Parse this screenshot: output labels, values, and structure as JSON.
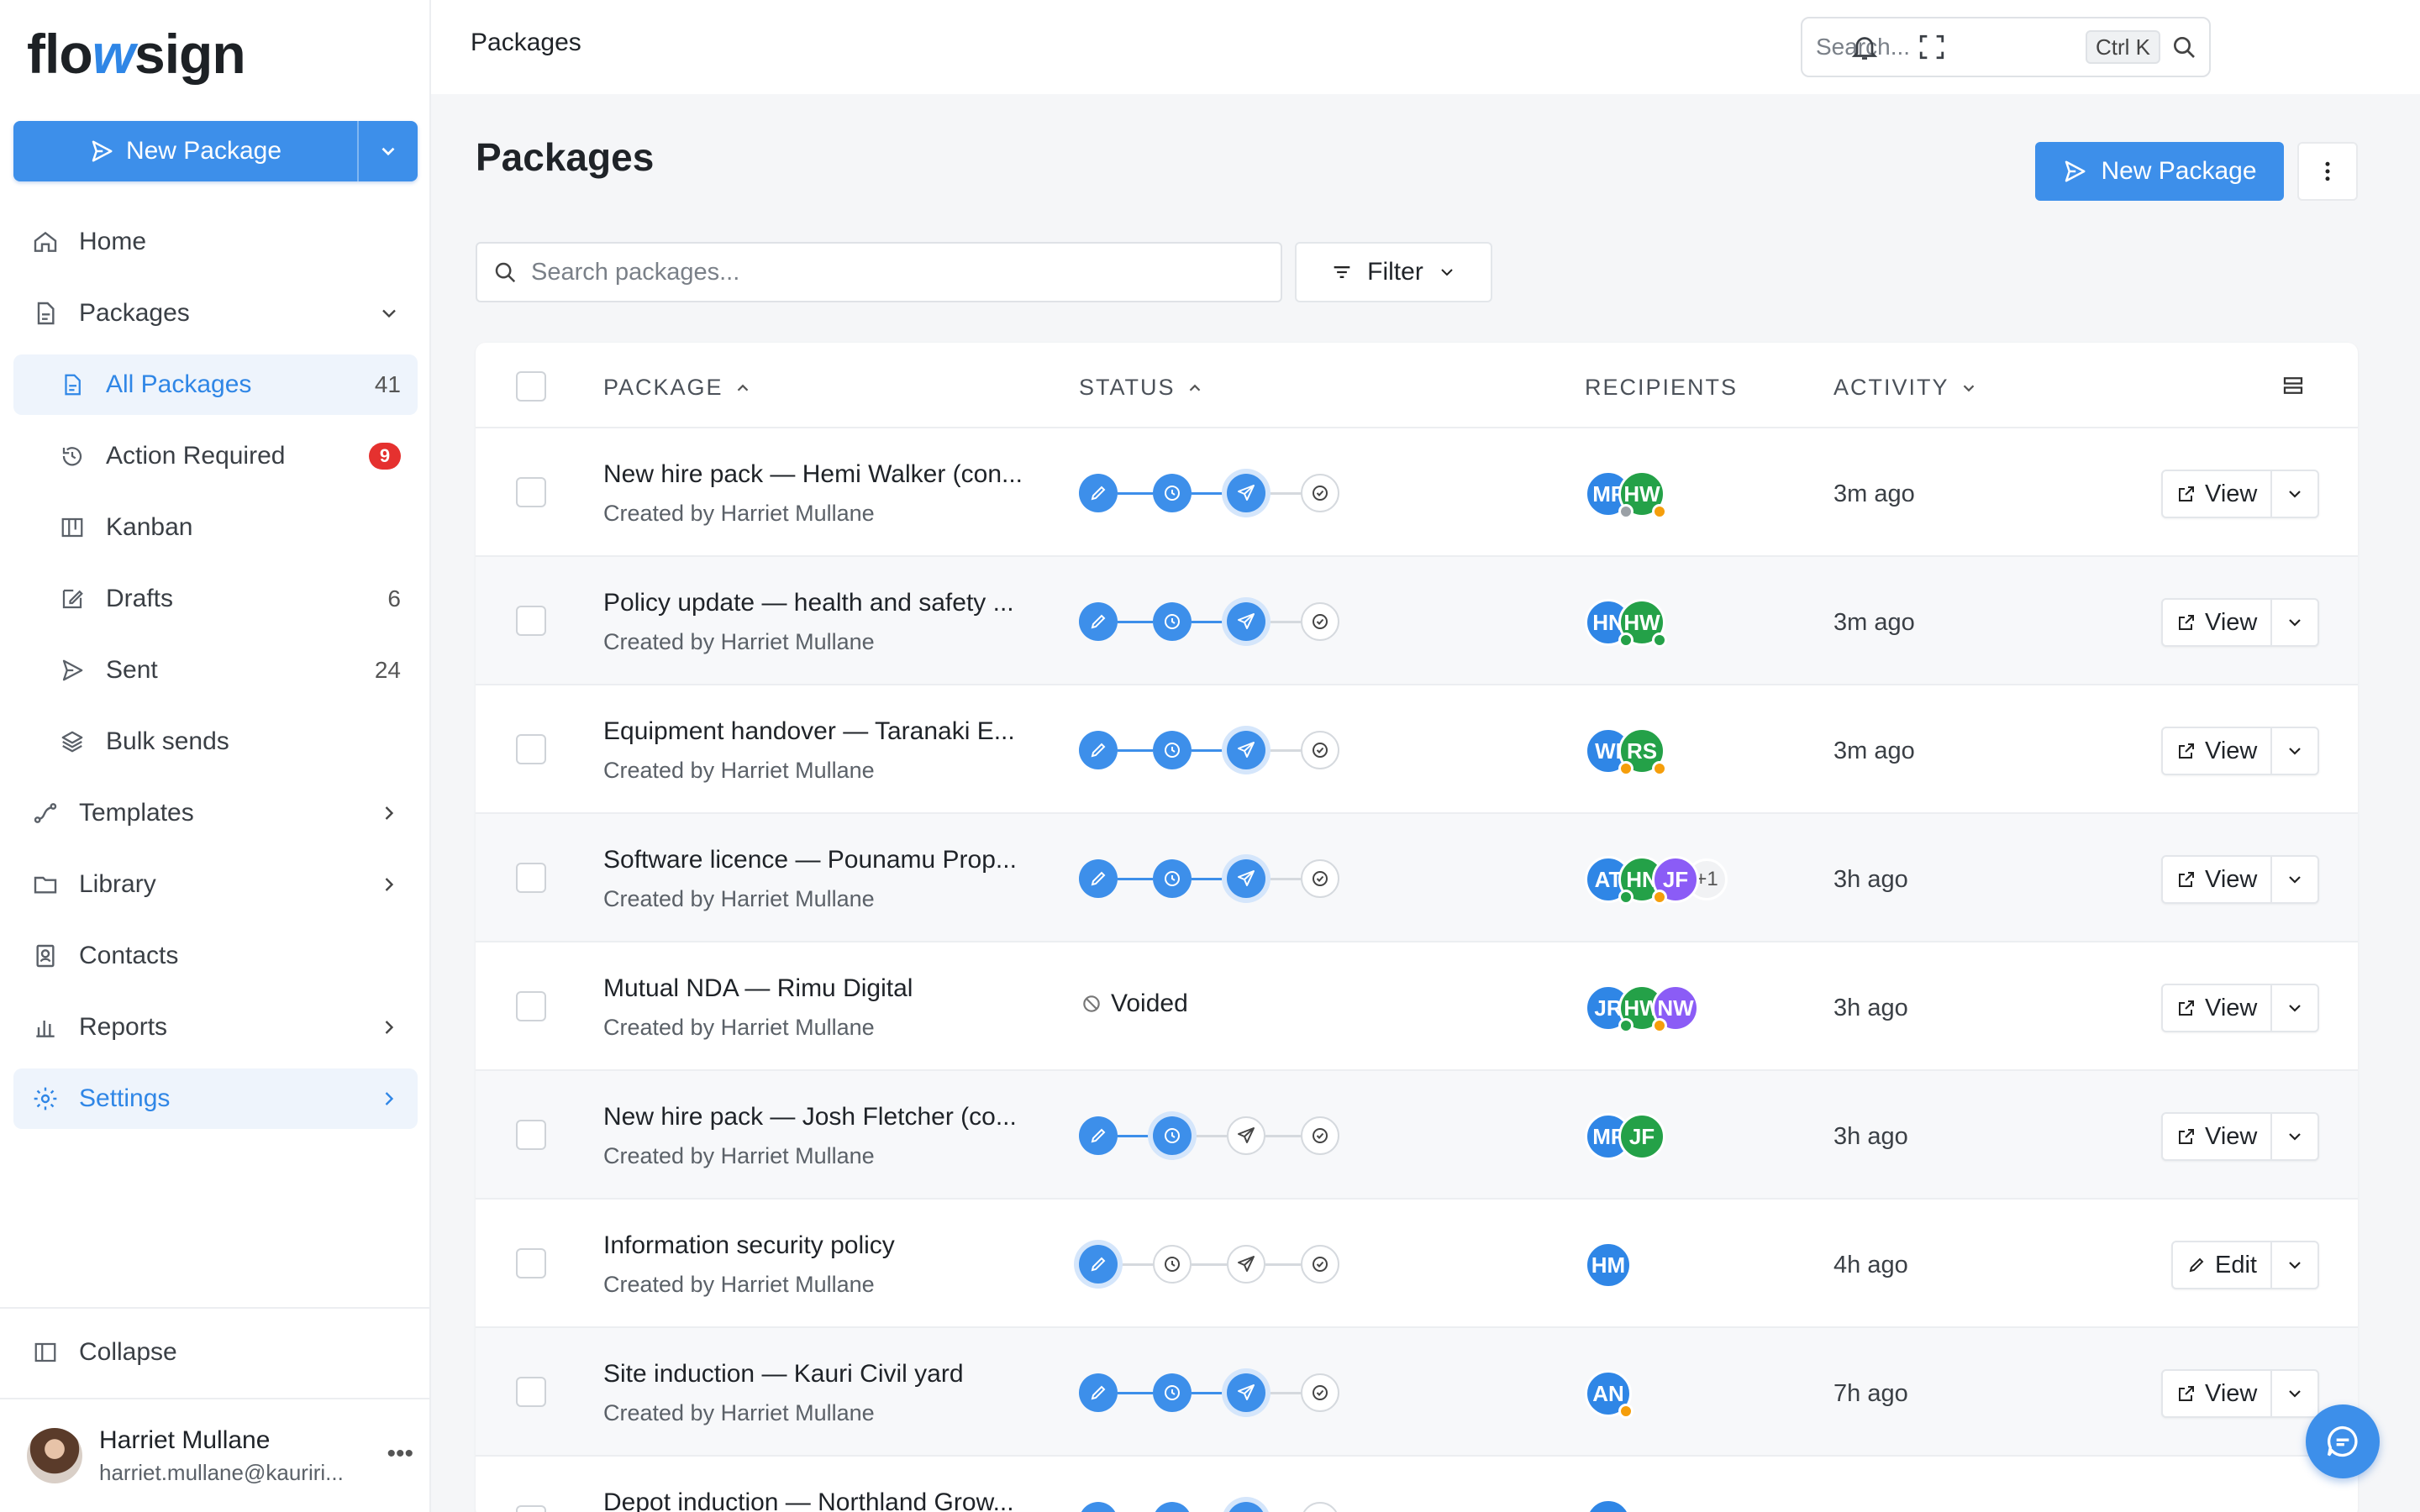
{
  "brand": {
    "logo_part1": "flo",
    "logo_part2": "w",
    "logo_part3": "sign",
    "accent": "#3d8fea"
  },
  "sidebar": {
    "new_package_label": "New Package",
    "items": [
      {
        "label": "Home",
        "icon": "home-icon"
      },
      {
        "label": "Packages",
        "icon": "document-icon"
      },
      {
        "label": "All Packages",
        "icon": "document-icon",
        "count": "41"
      },
      {
        "label": "Action Required",
        "icon": "history-icon",
        "badge": "9"
      },
      {
        "label": "Kanban",
        "icon": "kanban-icon"
      },
      {
        "label": "Drafts",
        "icon": "edit-icon",
        "count": "6"
      },
      {
        "label": "Sent",
        "icon": "send-icon",
        "count": "24"
      },
      {
        "label": "Bulk sends",
        "icon": "layers-icon"
      },
      {
        "label": "Templates",
        "icon": "route-icon"
      },
      {
        "label": "Library",
        "icon": "folder-icon"
      },
      {
        "label": "Contacts",
        "icon": "contact-icon"
      },
      {
        "label": "Reports",
        "icon": "bar-chart-icon"
      },
      {
        "label": "Settings",
        "icon": "gear-icon"
      }
    ],
    "collapse_label": "Collapse",
    "user": {
      "name": "Harriet Mullane",
      "email": "harriet.mullane@kauriri..."
    }
  },
  "topbar": {
    "breadcrumb": "Packages",
    "search_placeholder": "Search...",
    "shortcut": "Ctrl K"
  },
  "main": {
    "title": "Packages",
    "new_package_label": "New Package",
    "search_placeholder": "Search packages...",
    "filter_label": "Filter",
    "columns": {
      "package": "PACKAGE",
      "status": "STATUS",
      "recipients": "RECIPIENTS",
      "activity": "ACTIVITY"
    }
  },
  "rows": [
    {
      "title": "New hire pack — Hemi Walker (con...",
      "created_by": "Created by Harriet Mullane",
      "status": "sent",
      "recipients": [
        {
          "initials": "MF",
          "color": "blue",
          "dot": "grey"
        },
        {
          "initials": "HW",
          "color": "green",
          "dot": "orange"
        }
      ],
      "activity": "3m ago",
      "action": "View"
    },
    {
      "title": "Policy update — health and safety ...",
      "created_by": "Created by Harriet Mullane",
      "status": "sent",
      "recipients": [
        {
          "initials": "HN",
          "color": "blue",
          "dot": "green"
        },
        {
          "initials": "HW",
          "color": "green",
          "dot": "green"
        }
      ],
      "activity": "3m ago",
      "action": "View"
    },
    {
      "title": "Equipment handover — Taranaki E...",
      "created_by": "Created by Harriet Mullane",
      "status": "sent",
      "recipients": [
        {
          "initials": "WI",
          "color": "blue",
          "dot": "orange"
        },
        {
          "initials": "RS",
          "color": "green",
          "dot": "orange"
        }
      ],
      "activity": "3m ago",
      "action": "View"
    },
    {
      "title": "Software licence — Pounamu Prop...",
      "created_by": "Created by Harriet Mullane",
      "status": "sent",
      "recipients": [
        {
          "initials": "AT",
          "color": "blue",
          "dot": "green"
        },
        {
          "initials": "HN",
          "color": "green",
          "dot": "orange"
        },
        {
          "initials": "JF",
          "color": "purple",
          "dot": ""
        }
      ],
      "extra": "+1",
      "activity": "3h ago",
      "action": "View"
    },
    {
      "title": "Mutual NDA — Rimu Digital",
      "created_by": "Created by Harriet Mullane",
      "status": "voided",
      "voided_label": "Voided",
      "recipients": [
        {
          "initials": "JR",
          "color": "blue",
          "dot": "green"
        },
        {
          "initials": "HW",
          "color": "green",
          "dot": "orange"
        },
        {
          "initials": "NW",
          "color": "purple",
          "dot": ""
        }
      ],
      "activity": "3h ago",
      "action": "View"
    },
    {
      "title": "New hire pack — Josh Fletcher (co...",
      "created_by": "Created by Harriet Mullane",
      "status": "pending",
      "recipients": [
        {
          "initials": "MF",
          "color": "blue",
          "dot": ""
        },
        {
          "initials": "JF",
          "color": "green",
          "dot": ""
        }
      ],
      "activity": "3h ago",
      "action": "View"
    },
    {
      "title": "Information security policy",
      "created_by": "Created by Harriet Mullane",
      "status": "draft",
      "recipients": [
        {
          "initials": "HM",
          "color": "blue",
          "dot": ""
        }
      ],
      "activity": "4h ago",
      "action": "Edit"
    },
    {
      "title": "Site induction — Kauri Civil yard",
      "created_by": "Created by Harriet Mullane",
      "status": "sent",
      "recipients": [
        {
          "initials": "AN",
          "color": "blue",
          "dot": "orange"
        }
      ],
      "activity": "7h ago",
      "action": "View"
    },
    {
      "title": "Depot induction — Northland Grow...",
      "created_by": "",
      "status": "sent",
      "recipients": [
        {
          "initials": "",
          "color": "blue",
          "dot": ""
        }
      ],
      "activity": "",
      "action": ""
    }
  ]
}
